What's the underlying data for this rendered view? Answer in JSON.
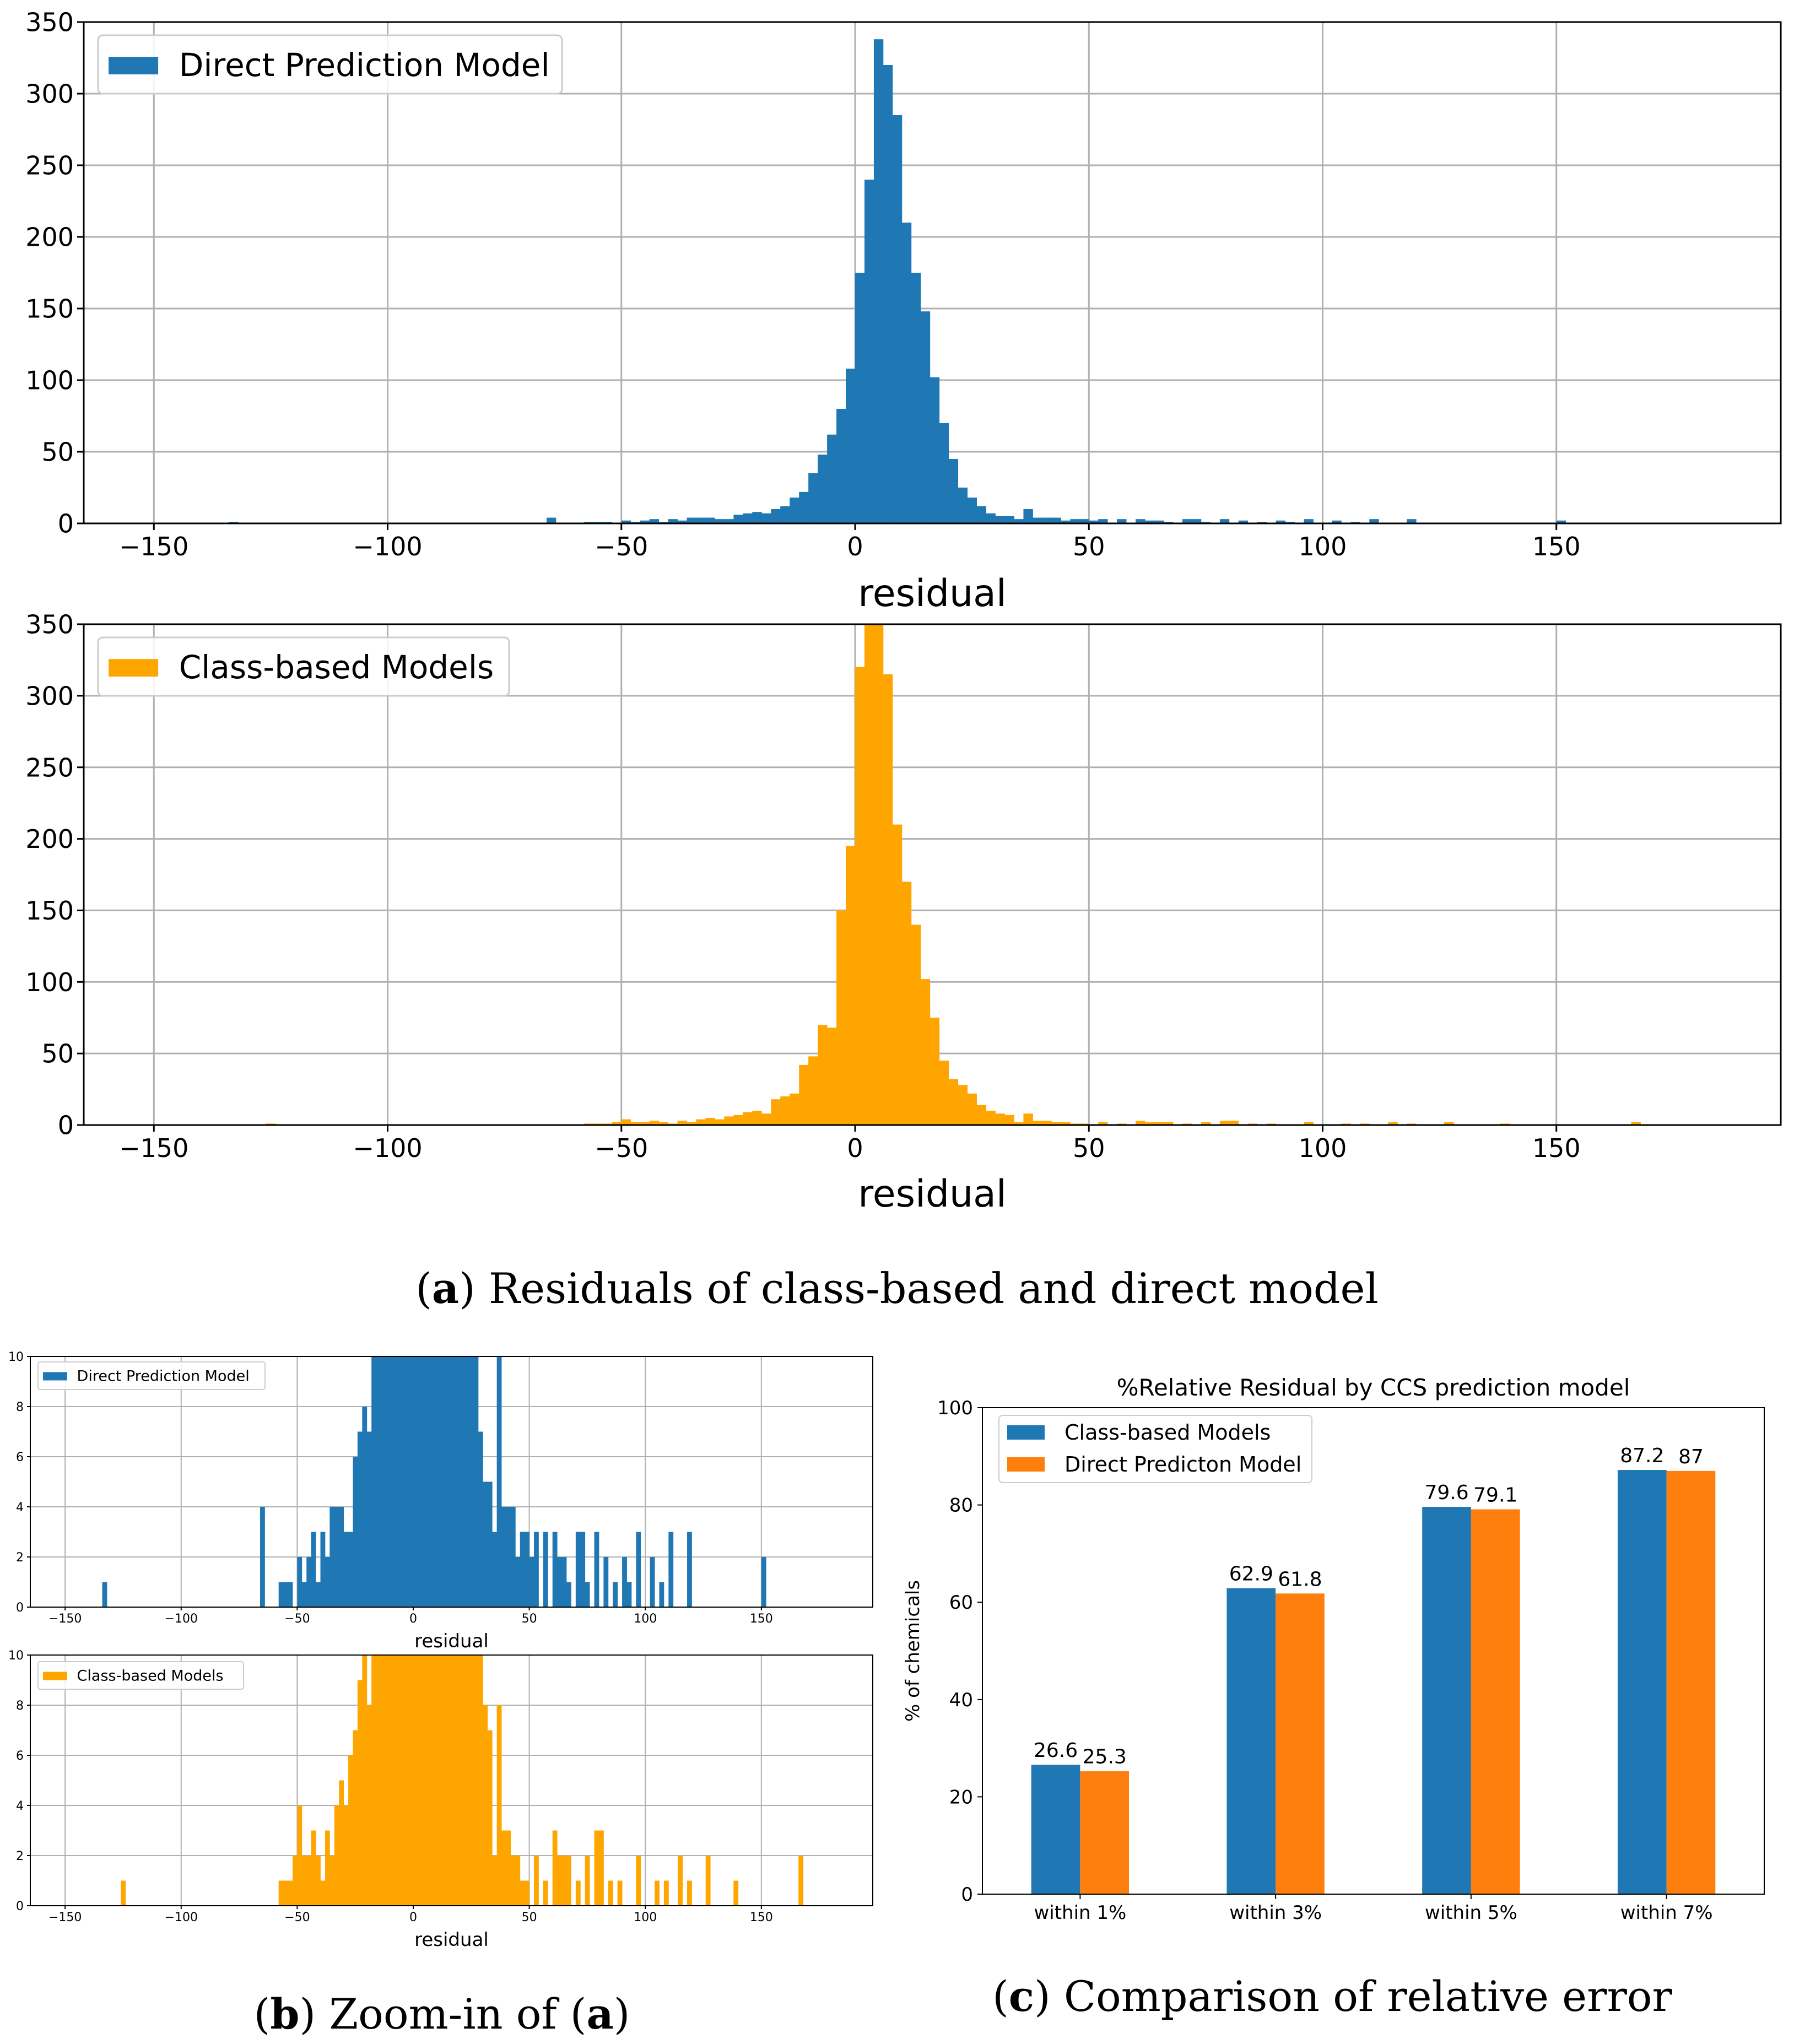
{
  "colors": {
    "blue": "#1f77b4",
    "orange_hist": "#ffa500",
    "orange_bar": "#ff7f0e",
    "grid": "#b0b0b0",
    "text": "#000000"
  },
  "captions": {
    "a_letter": "a",
    "a_text": " Residuals of class-based and direct model",
    "b_letter": "b",
    "b_text1": " Zoom-in of (",
    "b_letter2": "a",
    "b_text2": ")",
    "c_letter": "c",
    "c_text": " Comparison of relative error"
  },
  "chart_data": [
    {
      "id": "a_top",
      "type": "bar",
      "title": "",
      "xlabel": "residual",
      "ylabel": "",
      "legend": "Direct Prediction Model",
      "legend_position": "top-left",
      "color": "#1f77b4",
      "xlim": [
        -165,
        198
      ],
      "ylim": [
        0,
        350
      ],
      "grid": true,
      "xticks": [
        -150,
        -100,
        -50,
        0,
        50,
        100,
        150
      ],
      "xtick_labels": [
        "−150",
        "−100",
        "−50",
        "0",
        "50",
        "100",
        "150"
      ],
      "yticks": [
        0,
        50,
        100,
        150,
        200,
        250,
        300,
        350
      ],
      "ytick_labels": [
        "0",
        "50",
        "100",
        "150",
        "200",
        "250",
        "300",
        "350"
      ],
      "bin_width": 2,
      "bins": [
        [
          -134,
          1
        ],
        [
          -66,
          4
        ],
        [
          -58,
          1
        ],
        [
          -56,
          1
        ],
        [
          -54,
          1
        ],
        [
          -50,
          2
        ],
        [
          -48,
          1
        ],
        [
          -46,
          2
        ],
        [
          -44,
          3
        ],
        [
          -42,
          1
        ],
        [
          -40,
          3
        ],
        [
          -38,
          2
        ],
        [
          -36,
          4
        ],
        [
          -34,
          4
        ],
        [
          -32,
          4
        ],
        [
          -30,
          3
        ],
        [
          -28,
          3
        ],
        [
          -26,
          6
        ],
        [
          -24,
          7
        ],
        [
          -22,
          8
        ],
        [
          -20,
          7
        ],
        [
          -18,
          10
        ],
        [
          -16,
          12
        ],
        [
          -14,
          18
        ],
        [
          -12,
          22
        ],
        [
          -10,
          35
        ],
        [
          -8,
          48
        ],
        [
          -6,
          62
        ],
        [
          -4,
          80
        ],
        [
          -2,
          108
        ],
        [
          0,
          175
        ],
        [
          2,
          240
        ],
        [
          4,
          338
        ],
        [
          6,
          320
        ],
        [
          8,
          285
        ],
        [
          10,
          210
        ],
        [
          12,
          175
        ],
        [
          14,
          148
        ],
        [
          16,
          102
        ],
        [
          18,
          70
        ],
        [
          20,
          45
        ],
        [
          22,
          25
        ],
        [
          24,
          18
        ],
        [
          26,
          12
        ],
        [
          28,
          7
        ],
        [
          30,
          5
        ],
        [
          32,
          5
        ],
        [
          34,
          3
        ],
        [
          36,
          10
        ],
        [
          38,
          4
        ],
        [
          40,
          4
        ],
        [
          42,
          4
        ],
        [
          44,
          2
        ],
        [
          46,
          3
        ],
        [
          48,
          3
        ],
        [
          50,
          2
        ],
        [
          52,
          3
        ],
        [
          56,
          3
        ],
        [
          60,
          3
        ],
        [
          62,
          2
        ],
        [
          64,
          2
        ],
        [
          66,
          1
        ],
        [
          70,
          3
        ],
        [
          72,
          3
        ],
        [
          74,
          1
        ],
        [
          78,
          3
        ],
        [
          82,
          2
        ],
        [
          86,
          1
        ],
        [
          90,
          2
        ],
        [
          92,
          1
        ],
        [
          96,
          3
        ],
        [
          102,
          2
        ],
        [
          106,
          1
        ],
        [
          110,
          3
        ],
        [
          118,
          3
        ],
        [
          150,
          2
        ]
      ]
    },
    {
      "id": "a_bottom",
      "type": "bar",
      "title": "",
      "xlabel": "residual",
      "ylabel": "",
      "legend": "Class-based Models",
      "legend_position": "top-left",
      "color": "#ffa500",
      "xlim": [
        -165,
        198
      ],
      "ylim": [
        0,
        350
      ],
      "grid": true,
      "xticks": [
        -150,
        -100,
        -50,
        0,
        50,
        100,
        150
      ],
      "xtick_labels": [
        "−150",
        "−100",
        "−50",
        "0",
        "50",
        "100",
        "150"
      ],
      "yticks": [
        0,
        50,
        100,
        150,
        200,
        250,
        300,
        350
      ],
      "ytick_labels": [
        "0",
        "50",
        "100",
        "150",
        "200",
        "250",
        "300",
        "350"
      ],
      "bin_width": 2,
      "bins": [
        [
          -126,
          1
        ],
        [
          -58,
          1
        ],
        [
          -56,
          1
        ],
        [
          -54,
          1
        ],
        [
          -52,
          2
        ],
        [
          -50,
          4
        ],
        [
          -48,
          2
        ],
        [
          -46,
          2
        ],
        [
          -44,
          3
        ],
        [
          -42,
          2
        ],
        [
          -40,
          1
        ],
        [
          -38,
          3
        ],
        [
          -36,
          2
        ],
        [
          -34,
          4
        ],
        [
          -32,
          5
        ],
        [
          -30,
          4
        ],
        [
          -28,
          6
        ],
        [
          -26,
          7
        ],
        [
          -24,
          9
        ],
        [
          -22,
          10
        ],
        [
          -20,
          8
        ],
        [
          -18,
          18
        ],
        [
          -16,
          20
        ],
        [
          -14,
          22
        ],
        [
          -12,
          42
        ],
        [
          -10,
          48
        ],
        [
          -8,
          70
        ],
        [
          -6,
          68
        ],
        [
          -4,
          150
        ],
        [
          -2,
          195
        ],
        [
          0,
          320
        ],
        [
          2,
          350
        ],
        [
          4,
          350
        ],
        [
          6,
          315
        ],
        [
          8,
          210
        ],
        [
          10,
          170
        ],
        [
          12,
          140
        ],
        [
          14,
          102
        ],
        [
          16,
          75
        ],
        [
          18,
          45
        ],
        [
          20,
          32
        ],
        [
          22,
          28
        ],
        [
          24,
          22
        ],
        [
          26,
          14
        ],
        [
          28,
          10
        ],
        [
          30,
          8
        ],
        [
          32,
          7
        ],
        [
          34,
          2
        ],
        [
          36,
          8
        ],
        [
          38,
          3
        ],
        [
          40,
          3
        ],
        [
          42,
          2
        ],
        [
          44,
          2
        ],
        [
          46,
          1
        ],
        [
          48,
          1
        ],
        [
          52,
          2
        ],
        [
          56,
          1
        ],
        [
          60,
          3
        ],
        [
          62,
          2
        ],
        [
          64,
          2
        ],
        [
          66,
          2
        ],
        [
          70,
          1
        ],
        [
          74,
          2
        ],
        [
          78,
          3
        ],
        [
          80,
          3
        ],
        [
          84,
          1
        ],
        [
          88,
          1
        ],
        [
          96,
          2
        ],
        [
          104,
          1
        ],
        [
          108,
          1
        ],
        [
          114,
          2
        ],
        [
          118,
          1
        ],
        [
          126,
          2
        ],
        [
          138,
          1
        ],
        [
          166,
          2
        ]
      ]
    },
    {
      "id": "b_top",
      "type": "bar",
      "title": "",
      "xlabel": "residual",
      "ylabel": "",
      "legend": "Direct Prediction Model",
      "legend_position": "top-left",
      "color": "#1f77b4",
      "xlim": [
        -165,
        198
      ],
      "ylim": [
        0,
        10
      ],
      "grid": true,
      "xticks": [
        -150,
        -100,
        -50,
        0,
        50,
        100,
        150
      ],
      "xtick_labels": [
        "−150",
        "−100",
        "−50",
        "0",
        "50",
        "100",
        "150"
      ],
      "yticks": [
        0,
        2,
        4,
        6,
        8,
        10
      ],
      "ytick_labels": [
        "0",
        "2",
        "4",
        "6",
        "8",
        "10"
      ],
      "bin_width": 2,
      "bins": [
        [
          -134,
          1
        ],
        [
          -66,
          4
        ],
        [
          -58,
          1
        ],
        [
          -56,
          1
        ],
        [
          -54,
          1
        ],
        [
          -50,
          2
        ],
        [
          -48,
          1
        ],
        [
          -46,
          2
        ],
        [
          -44,
          3
        ],
        [
          -42,
          1
        ],
        [
          -40,
          3
        ],
        [
          -38,
          2
        ],
        [
          -36,
          4
        ],
        [
          -34,
          4
        ],
        [
          -32,
          4
        ],
        [
          -30,
          3
        ],
        [
          -28,
          3
        ],
        [
          -26,
          6
        ],
        [
          -24,
          7
        ],
        [
          -22,
          8
        ],
        [
          -20,
          7
        ],
        [
          -18,
          10
        ],
        [
          -16,
          12
        ],
        [
          -14,
          18
        ],
        [
          -12,
          22
        ],
        [
          -10,
          35
        ],
        [
          -8,
          48
        ],
        [
          -6,
          62
        ],
        [
          -4,
          80
        ],
        [
          -2,
          108
        ],
        [
          0,
          175
        ],
        [
          2,
          240
        ],
        [
          4,
          338
        ],
        [
          6,
          320
        ],
        [
          8,
          285
        ],
        [
          10,
          210
        ],
        [
          12,
          175
        ],
        [
          14,
          148
        ],
        [
          16,
          102
        ],
        [
          18,
          70
        ],
        [
          20,
          45
        ],
        [
          22,
          25
        ],
        [
          24,
          18
        ],
        [
          26,
          12
        ],
        [
          28,
          7
        ],
        [
          30,
          5
        ],
        [
          32,
          5
        ],
        [
          34,
          3
        ],
        [
          36,
          10
        ],
        [
          38,
          4
        ],
        [
          40,
          4
        ],
        [
          42,
          4
        ],
        [
          44,
          2
        ],
        [
          46,
          3
        ],
        [
          48,
          3
        ],
        [
          50,
          2
        ],
        [
          52,
          3
        ],
        [
          56,
          3
        ],
        [
          60,
          3
        ],
        [
          62,
          2
        ],
        [
          64,
          2
        ],
        [
          66,
          1
        ],
        [
          70,
          3
        ],
        [
          72,
          3
        ],
        [
          74,
          1
        ],
        [
          78,
          3
        ],
        [
          82,
          2
        ],
        [
          86,
          1
        ],
        [
          90,
          2
        ],
        [
          92,
          1
        ],
        [
          96,
          3
        ],
        [
          102,
          2
        ],
        [
          106,
          1
        ],
        [
          110,
          3
        ],
        [
          118,
          3
        ],
        [
          150,
          2
        ]
      ]
    },
    {
      "id": "b_bottom",
      "type": "bar",
      "title": "",
      "xlabel": "residual",
      "ylabel": "",
      "legend": "Class-based Models",
      "legend_position": "top-left",
      "color": "#ffa500",
      "xlim": [
        -165,
        198
      ],
      "ylim": [
        0,
        10
      ],
      "grid": true,
      "xticks": [
        -150,
        -100,
        -50,
        0,
        50,
        100,
        150
      ],
      "xtick_labels": [
        "−150",
        "−100",
        "−50",
        "0",
        "50",
        "100",
        "150"
      ],
      "yticks": [
        0,
        2,
        4,
        6,
        8,
        10
      ],
      "ytick_labels": [
        "0",
        "2",
        "4",
        "6",
        "8",
        "10"
      ],
      "bin_width": 2,
      "bins": [
        [
          -126,
          1
        ],
        [
          -58,
          1
        ],
        [
          -56,
          1
        ],
        [
          -54,
          1
        ],
        [
          -52,
          2
        ],
        [
          -50,
          4
        ],
        [
          -48,
          2
        ],
        [
          -46,
          2
        ],
        [
          -44,
          3
        ],
        [
          -42,
          2
        ],
        [
          -40,
          1
        ],
        [
          -38,
          3
        ],
        [
          -36,
          2
        ],
        [
          -34,
          4
        ],
        [
          -32,
          5
        ],
        [
          -30,
          4
        ],
        [
          -28,
          6
        ],
        [
          -26,
          7
        ],
        [
          -24,
          9
        ],
        [
          -22,
          10
        ],
        [
          -20,
          8
        ],
        [
          -18,
          18
        ],
        [
          -16,
          20
        ],
        [
          -14,
          22
        ],
        [
          -12,
          42
        ],
        [
          -10,
          48
        ],
        [
          -8,
          70
        ],
        [
          -6,
          68
        ],
        [
          -4,
          150
        ],
        [
          -2,
          195
        ],
        [
          0,
          320
        ],
        [
          2,
          350
        ],
        [
          4,
          350
        ],
        [
          6,
          315
        ],
        [
          8,
          210
        ],
        [
          10,
          170
        ],
        [
          12,
          140
        ],
        [
          14,
          102
        ],
        [
          16,
          75
        ],
        [
          18,
          45
        ],
        [
          20,
          32
        ],
        [
          22,
          28
        ],
        [
          24,
          22
        ],
        [
          26,
          14
        ],
        [
          28,
          10
        ],
        [
          30,
          8
        ],
        [
          32,
          7
        ],
        [
          34,
          2
        ],
        [
          36,
          8
        ],
        [
          38,
          3
        ],
        [
          40,
          3
        ],
        [
          42,
          2
        ],
        [
          44,
          2
        ],
        [
          46,
          1
        ],
        [
          48,
          1
        ],
        [
          52,
          2
        ],
        [
          56,
          1
        ],
        [
          60,
          3
        ],
        [
          62,
          2
        ],
        [
          64,
          2
        ],
        [
          66,
          2
        ],
        [
          70,
          1
        ],
        [
          74,
          2
        ],
        [
          78,
          3
        ],
        [
          80,
          3
        ],
        [
          84,
          1
        ],
        [
          88,
          1
        ],
        [
          96,
          2
        ],
        [
          104,
          1
        ],
        [
          108,
          1
        ],
        [
          114,
          2
        ],
        [
          118,
          1
        ],
        [
          126,
          2
        ],
        [
          138,
          1
        ],
        [
          166,
          2
        ]
      ]
    },
    {
      "id": "c",
      "type": "bar",
      "title": "%Relative Residual by CCS prediction model",
      "xlabel": "",
      "ylabel": "% of chemicals",
      "categories": [
        "within 1%",
        "within 3%",
        "within 5%",
        "within 7%"
      ],
      "series": [
        {
          "name": "Class-based Models",
          "values": [
            26.6,
            62.9,
            79.6,
            87.2
          ],
          "labels": [
            "26.6",
            "62.9",
            "79.6",
            "87.2"
          ],
          "color": "#1f77b4"
        },
        {
          "name": "Direct Predicton Model",
          "values": [
            25.3,
            61.8,
            79.1,
            87.0
          ],
          "labels": [
            "25.3",
            "61.8",
            "79.1",
            "87"
          ],
          "color": "#ff7f0e"
        }
      ],
      "ylim": [
        0,
        100
      ],
      "grid": false,
      "legend_position": "top-left",
      "yticks": [
        0,
        20,
        40,
        60,
        80,
        100
      ],
      "ytick_labels": [
        "0",
        "20",
        "40",
        "60",
        "80",
        "100"
      ]
    }
  ]
}
